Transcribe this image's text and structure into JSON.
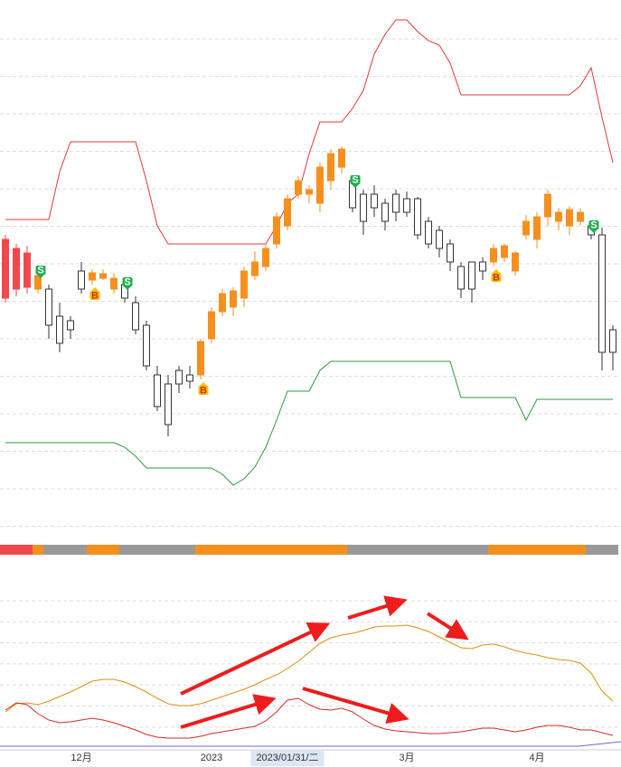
{
  "chart_data": {
    "type": "candlestick",
    "ylim": [
      0,
      590
    ],
    "y2lim": [
      0,
      180
    ],
    "categories": [
      null,
      null,
      null,
      null,
      null,
      null,
      null,
      "12月",
      null,
      null,
      null,
      null,
      null,
      null,
      null,
      null,
      null,
      null,
      null,
      "2023",
      null,
      null,
      null,
      null,
      null,
      null,
      "2023/01/31/二",
      null,
      null,
      null,
      null,
      null,
      null,
      null,
      null,
      null,
      null,
      "3月",
      null,
      null,
      null,
      null,
      null,
      null,
      null,
      null,
      null,
      null,
      null,
      "4月",
      null,
      null,
      null,
      null,
      null,
      null,
      null
    ],
    "highlight_index": 26,
    "open": [
      325,
      270,
      310,
      285,
      270,
      240,
      225,
      270,
      280,
      287,
      282,
      275,
      255,
      230,
      175,
      165,
      165,
      175,
      175,
      215,
      245,
      250,
      260,
      285,
      295,
      320,
      340,
      375,
      375,
      365,
      390,
      405,
      390,
      345,
      360,
      345,
      355,
      370,
      370,
      345,
      335,
      320,
      295,
      270,
      290,
      300,
      305,
      310,
      345,
      325,
      350,
      345,
      340,
      345,
      340,
      330,
      200
    ],
    "high": [
      330,
      320,
      318,
      295,
      275,
      255,
      240,
      300,
      292,
      292,
      288,
      282,
      262,
      235,
      185,
      175,
      185,
      185,
      215,
      250,
      270,
      272,
      295,
      312,
      320,
      355,
      375,
      395,
      385,
      410,
      425,
      428,
      395,
      380,
      385,
      370,
      380,
      378,
      372,
      350,
      340,
      325,
      300,
      300,
      305,
      320,
      320,
      312,
      352,
      355,
      380,
      360,
      362,
      360,
      345,
      338,
      230
    ],
    "low": [
      255,
      262,
      265,
      265,
      215,
      200,
      215,
      265,
      275,
      280,
      265,
      255,
      220,
      180,
      135,
      107,
      155,
      160,
      170,
      210,
      240,
      240,
      250,
      280,
      290,
      315,
      335,
      370,
      365,
      355,
      380,
      398,
      355,
      330,
      350,
      335,
      345,
      350,
      325,
      315,
      305,
      290,
      260,
      255,
      280,
      295,
      300,
      285,
      325,
      315,
      340,
      335,
      330,
      340,
      325,
      180,
      180
    ],
    "close": [
      260,
      315,
      272,
      270,
      230,
      210,
      235,
      290,
      288,
      282,
      270,
      260,
      225,
      185,
      140,
      120,
      180,
      168,
      212,
      245,
      265,
      268,
      290,
      300,
      315,
      350,
      370,
      390,
      380,
      405,
      420,
      425,
      360,
      375,
      375,
      365,
      375,
      355,
      330,
      320,
      315,
      300,
      270,
      300,
      300,
      315,
      318,
      290,
      330,
      350,
      375,
      355,
      358,
      355,
      330,
      200,
      225
    ],
    "state_segments": [
      {
        "start": 0,
        "end": 2,
        "color": "#f0484c",
        "hollow": false
      },
      {
        "start": 3,
        "end": 3,
        "color": "#f5901e",
        "hollow": false
      },
      {
        "start": 4,
        "end": 7,
        "color": "#999999",
        "hollow": true
      },
      {
        "start": 8,
        "end": 10,
        "color": "#f5901e",
        "hollow": false
      },
      {
        "start": 11,
        "end": 17,
        "color": "#999999",
        "hollow": true
      },
      {
        "start": 18,
        "end": 31,
        "color": "#f5901e",
        "hollow": false
      },
      {
        "start": 32,
        "end": 44,
        "color": "#999999",
        "hollow": true
      },
      {
        "start": 45,
        "end": 53,
        "color": "#f5901e",
        "hollow": false
      },
      {
        "start": 54,
        "end": 56,
        "color": "#999999",
        "hollow": true
      }
    ],
    "upper_band": {
      "color": "#e0383c",
      "values": [
        347,
        347,
        347,
        347,
        347,
        400,
        433,
        433,
        433,
        433,
        433,
        433,
        433,
        390,
        340,
        320,
        320,
        320,
        320,
        320,
        320,
        320,
        320,
        320,
        320,
        340,
        365,
        375,
        420,
        455,
        455,
        455,
        470,
        490,
        530,
        552,
        568,
        568,
        555,
        545,
        540,
        520,
        485,
        485,
        485,
        485,
        485,
        485,
        485,
        485,
        485,
        485,
        485,
        495,
        515,
        460,
        410
      ]
    },
    "lower_band": {
      "color": "#2e9a3a",
      "values": [
        100,
        100,
        100,
        100,
        100,
        100,
        100,
        100,
        100,
        100,
        100,
        95,
        85,
        72,
        72,
        72,
        72,
        72,
        72,
        72,
        65,
        53,
        60,
        73,
        95,
        125,
        157,
        157,
        157,
        180,
        190,
        190,
        190,
        190,
        190,
        190,
        190,
        190,
        190,
        190,
        190,
        190,
        150,
        150,
        150,
        150,
        150,
        150,
        125,
        148,
        148,
        148,
        148,
        148,
        148,
        148,
        148
      ]
    },
    "signals": [
      {
        "index": 3,
        "label": "S"
      },
      {
        "index": 8,
        "label": "B"
      },
      {
        "index": 11,
        "label": "S"
      },
      {
        "index": 18,
        "label": "B"
      },
      {
        "index": 32,
        "label": "S"
      },
      {
        "index": 45,
        "label": "B"
      },
      {
        "index": 54,
        "label": "S"
      }
    ],
    "indicator_lines": [
      {
        "color": "#d9900f",
        "axis": "y2",
        "values": [
          42,
          51,
          52,
          50,
          54,
          59,
          64,
          70,
          76,
          78,
          78,
          75,
          70,
          64,
          57,
          51,
          49,
          49,
          51,
          55,
          59,
          63,
          67,
          72,
          78,
          83,
          90,
          98,
          108,
          118,
          124,
          127,
          129,
          132,
          136,
          137,
          137,
          138,
          135,
          131,
          125,
          119,
          113,
          112,
          116,
          117,
          114,
          110,
          107,
          105,
          102,
          100,
          99,
          96,
          85,
          65,
          54
        ]
      },
      {
        "color": "#d82a2a",
        "axis": "y2",
        "values": [
          44,
          52,
          50,
          40,
          33,
          30,
          31,
          33,
          35,
          33,
          30,
          26,
          22,
          17,
          14,
          13,
          13,
          13,
          15,
          18,
          20,
          22,
          24,
          26,
          32,
          42,
          55,
          57,
          50,
          45,
          44,
          46,
          42,
          34,
          27,
          23,
          21,
          20,
          19,
          18,
          18,
          19,
          20,
          22,
          24,
          24,
          22,
          20,
          22,
          25,
          27,
          27,
          25,
          22,
          22,
          19,
          16
        ]
      }
    ]
  }
}
